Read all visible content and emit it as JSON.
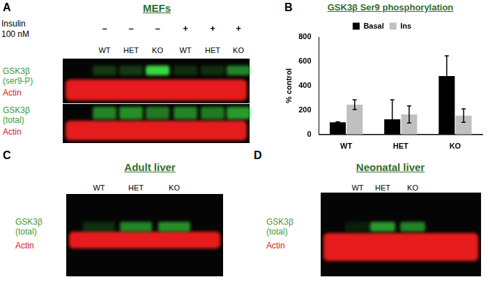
{
  "chart_data": {
    "type": "bar",
    "title": "GSK3β Ser9 phosphorylation",
    "y_label": "% control",
    "categories": [
      "WT",
      "HET",
      "KO"
    ],
    "series": [
      {
        "name": "Basal",
        "color": "#000000",
        "values": [
          100,
          125,
          480
        ],
        "errors": [
          5,
          160,
          165
        ]
      },
      {
        "name": "Ins",
        "color": "#c0c0c0",
        "values": [
          245,
          165,
          155
        ],
        "errors": [
          40,
          70,
          55
        ]
      }
    ],
    "ylim": [
      0,
      800
    ],
    "yticks": [
      0,
      200,
      400,
      600,
      800
    ],
    "grid": false,
    "legend": "top"
  },
  "panels": {
    "A": {
      "label": "A",
      "title": "MEFs",
      "treatment": [
        "Insulin",
        "100 nM"
      ],
      "treatment_signs": [
        "–",
        "–",
        "–",
        "+",
        "+",
        "+"
      ],
      "lanes": [
        "WT",
        "HET",
        "KO",
        "WT",
        "HET",
        "KO"
      ],
      "blots": [
        {
          "target": [
            "GSK3β",
            "(ser9-P)"
          ],
          "control": "Actin"
        },
        {
          "target": [
            "GSK3β",
            "(total)"
          ],
          "control": "Actin"
        }
      ]
    },
    "B": {
      "label": "B"
    },
    "C": {
      "label": "C",
      "title": "Adult liver",
      "lanes": [
        "WT",
        "HET",
        "KO"
      ],
      "blots": [
        {
          "target": [
            "GSK3β",
            "(total)"
          ],
          "control": "Actin"
        }
      ]
    },
    "D": {
      "label": "D",
      "title": "Neonatal liver",
      "lanes": [
        "WT",
        "HET",
        "KO"
      ],
      "blots": [
        {
          "target": [
            "GSK3β",
            "(total)"
          ],
          "control": "Actin"
        }
      ]
    }
  }
}
